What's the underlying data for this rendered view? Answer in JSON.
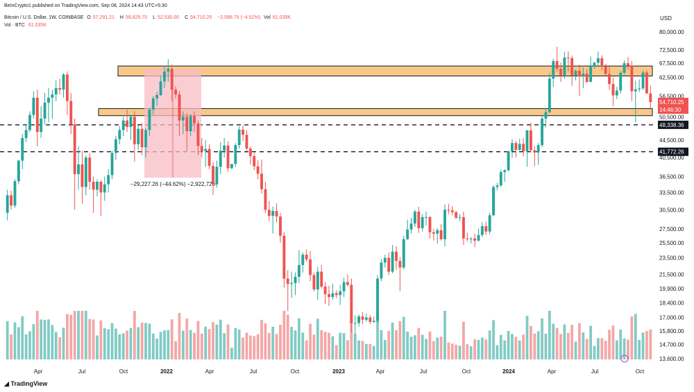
{
  "header": {
    "published": "BeInCrypto1 published on TradingView.com, Sep 08, 2024 14:43 UTC+5:30",
    "symbol": "Bitcoin / U.S. Dollar, 1W, COINBASE",
    "ohlc": {
      "o_label": "O",
      "o": "57,291.21",
      "h_label": "H",
      "h": "59,825.70",
      "l_label": "L",
      "l": "52,530.00",
      "c_label": "C",
      "c": "54,710.25",
      "change": "−2,588.75 (−4.52%)",
      "vol_label": "Vol",
      "vol": "61.035K"
    },
    "vol_line_label": "Vol · BTC",
    "vol_line_value": "61.035K"
  },
  "currency": "USD",
  "footer_logo": "TradingView",
  "colors": {
    "up": "#26a69a",
    "down": "#ef5350",
    "vol_up": "#80cbc4",
    "vol_down": "#f4a6a6",
    "zone_fill": "#f7c88a",
    "zone_border": "#131722",
    "measure_fill": "#f8bcc4",
    "price_tag": "#ef5350",
    "level_tag": "#131722"
  },
  "chart_data": {
    "type": "candlestick",
    "timeframe": "1W",
    "x_tick_labels": [
      "Apr",
      "Jul",
      "Oct",
      "2022",
      "Apr",
      "Jul",
      "Oct",
      "2023",
      "Apr",
      "Jul",
      "Oct",
      "2024",
      "Apr",
      "Jul",
      "Oct"
    ],
    "y_scale": "log",
    "y_tick_labels": [
      "80,000.00",
      "72,500.00",
      "67,500.00",
      "62,500.00",
      "56,500.00",
      "50,500.00",
      "44,500.00",
      "40,500.00",
      "36,500.00",
      "33,500.00",
      "30,500.00",
      "27,500.00",
      "25,500.00",
      "23,500.00",
      "21,500.00",
      "19,900.00",
      "18,400.00",
      "17,000.00",
      "15,800.00",
      "14,700.00",
      "13,600.00"
    ],
    "price_tags": {
      "last_price": "54,710.25",
      "countdown": "14:46:30",
      "level_1": "48,338.36",
      "level_2": "41,772.26"
    },
    "horizontal_levels": [
      48338.36,
      41772.26
    ],
    "zones": [
      {
        "low": 63000,
        "high": 66500
      },
      {
        "low": 50800,
        "high": 52800
      }
    ],
    "measure": {
      "label": "−29,227.26 (−44.62%) −2,922,726",
      "from_price": 65500,
      "to_price": 36300
    },
    "candles_note": "weekly OHLC approximations read from chart",
    "candles": [
      [
        30000,
        34000,
        28800,
        33000
      ],
      [
        33000,
        33800,
        30500,
        31200
      ],
      [
        31200,
        36000,
        30800,
        35600
      ],
      [
        35600,
        40000,
        35000,
        39800
      ],
      [
        39800,
        46000,
        38000,
        45000
      ],
      [
        45000,
        48500,
        44000,
        47000
      ],
      [
        47000,
        52000,
        46500,
        51000
      ],
      [
        51000,
        58000,
        50000,
        56000
      ],
      [
        56000,
        58500,
        43000,
        46500
      ],
      [
        46500,
        53500,
        45000,
        50000
      ],
      [
        50000,
        57500,
        48500,
        54500
      ],
      [
        54500,
        59000,
        49000,
        56000
      ],
      [
        56000,
        58500,
        50000,
        57000
      ],
      [
        57000,
        61500,
        55000,
        59000
      ],
      [
        59000,
        62000,
        57000,
        58500
      ],
      [
        58500,
        64000,
        56000,
        63500
      ],
      [
        63500,
        64500,
        51000,
        55000
      ],
      [
        55000,
        57500,
        46000,
        48500
      ],
      [
        48500,
        50000,
        30500,
        37000
      ],
      [
        37000,
        43000,
        34000,
        39000
      ],
      [
        39000,
        42000,
        31500,
        34500
      ],
      [
        34500,
        41000,
        33000,
        40500
      ],
      [
        40500,
        41500,
        34000,
        35500
      ],
      [
        35500,
        36500,
        30000,
        34000
      ],
      [
        34000,
        36000,
        32800,
        35500
      ],
      [
        35500,
        35800,
        29500,
        33500
      ],
      [
        33500,
        36500,
        32000,
        35000
      ],
      [
        35000,
        38000,
        33500,
        36800
      ],
      [
        36800,
        42000,
        36000,
        41500
      ],
      [
        41500,
        45500,
        40000,
        44700
      ],
      [
        44700,
        48000,
        43500,
        47000
      ],
      [
        47000,
        50500,
        45500,
        49500
      ],
      [
        49500,
        52500,
        46500,
        47800
      ],
      [
        47800,
        51000,
        44500,
        50500
      ],
      [
        50500,
        52000,
        39600,
        43500
      ],
      [
        43500,
        48300,
        42200,
        47300
      ],
      [
        47300,
        48800,
        41000,
        42800
      ],
      [
        42800,
        47500,
        40500,
        47000
      ],
      [
        47000,
        53000,
        45500,
        52500
      ],
      [
        52500,
        56500,
        51000,
        55800
      ],
      [
        55800,
        57800,
        53500,
        56800
      ],
      [
        56800,
        63000,
        56500,
        61200
      ],
      [
        61200,
        66500,
        59000,
        64500
      ],
      [
        64500,
        69000,
        61000,
        65500
      ],
      [
        65500,
        67000,
        55000,
        58500
      ],
      [
        58500,
        59500,
        55800,
        57000
      ],
      [
        57000,
        58000,
        45500,
        49500
      ],
      [
        49500,
        52000,
        46000,
        50500
      ],
      [
        50500,
        51500,
        42000,
        46700
      ],
      [
        46700,
        51300,
        45500,
        50700
      ],
      [
        50700,
        52000,
        46500,
        48700
      ],
      [
        48700,
        49500,
        41000,
        43100
      ],
      [
        43100,
        45000,
        40500,
        41900
      ],
      [
        41900,
        44500,
        38500,
        42400
      ],
      [
        42400,
        43500,
        38000,
        38700
      ],
      [
        38700,
        39500,
        33000,
        35000
      ],
      [
        35000,
        39800,
        34400,
        38500
      ],
      [
        38500,
        44000,
        37000,
        42000
      ],
      [
        42000,
        45000,
        40500,
        43200
      ],
      [
        43200,
        44200,
        37500,
        38200
      ],
      [
        38200,
        39000,
        38000,
        39100
      ],
      [
        39100,
        43800,
        38500,
        43300
      ],
      [
        43300,
        48000,
        42500,
        47100
      ],
      [
        47100,
        48200,
        44300,
        45800
      ],
      [
        45800,
        47000,
        42000,
        42500
      ],
      [
        42500,
        43000,
        39000,
        40800
      ],
      [
        40800,
        41500,
        37800,
        38600
      ],
      [
        38600,
        39900,
        36000,
        37100
      ],
      [
        37100,
        40000,
        33300,
        34100
      ],
      [
        34100,
        35500,
        30000,
        30500
      ],
      [
        30500,
        32000,
        28700,
        29500
      ],
      [
        29500,
        31000,
        26800,
        30300
      ],
      [
        30300,
        31600,
        28500,
        29400
      ],
      [
        29400,
        30000,
        25500,
        26500
      ],
      [
        26500,
        27000,
        20000,
        21000
      ],
      [
        21000,
        22000,
        17600,
        20400
      ],
      [
        20400,
        21800,
        18900,
        20500
      ],
      [
        20500,
        21700,
        19200,
        21200
      ],
      [
        21200,
        24500,
        20500,
        22600
      ],
      [
        22600,
        24200,
        21700,
        23900
      ],
      [
        23900,
        24600,
        23000,
        23300
      ],
      [
        23300,
        24400,
        20700,
        21400
      ],
      [
        21400,
        21700,
        19600,
        19800
      ],
      [
        19800,
        22400,
        18700,
        21800
      ],
      [
        21800,
        22600,
        19900,
        20100
      ],
      [
        20100,
        20600,
        18300,
        19300
      ],
      [
        19300,
        20200,
        18100,
        19000
      ],
      [
        19000,
        20400,
        18700,
        19400
      ],
      [
        19400,
        19700,
        18900,
        19200
      ],
      [
        19200,
        20300,
        18200,
        19600
      ],
      [
        19600,
        21100,
        19000,
        20600
      ],
      [
        20600,
        21500,
        20100,
        20300
      ],
      [
        20300,
        21000,
        15700,
        16500
      ],
      [
        16500,
        17200,
        15500,
        16500
      ],
      [
        16500,
        17300,
        16200,
        17100
      ],
      [
        17100,
        17500,
        16400,
        16800
      ],
      [
        16800,
        17400,
        16600,
        17000
      ],
      [
        17000,
        17200,
        16400,
        16600
      ],
      [
        16600,
        17100,
        16500,
        16700
      ],
      [
        16700,
        21400,
        16500,
        21000
      ],
      [
        21000,
        23300,
        20700,
        22900
      ],
      [
        22900,
        23900,
        22300,
        23500
      ],
      [
        23500,
        24200,
        21400,
        21800
      ],
      [
        21800,
        25200,
        21600,
        24300
      ],
      [
        24300,
        25000,
        22000,
        23100
      ],
      [
        23100,
        23600,
        19600,
        22300
      ],
      [
        22300,
        26500,
        22100,
        26000
      ],
      [
        26000,
        28900,
        25900,
        27400
      ],
      [
        27400,
        29200,
        26800,
        28300
      ],
      [
        28300,
        30500,
        27800,
        30200
      ],
      [
        30200,
        31000,
        26900,
        27600
      ],
      [
        27600,
        29800,
        27100,
        29300
      ],
      [
        29300,
        30200,
        28000,
        29300
      ],
      [
        29300,
        29500,
        26100,
        27000
      ],
      [
        27000,
        27500,
        25800,
        26800
      ],
      [
        26800,
        27600,
        25400,
        27300
      ],
      [
        27300,
        28200,
        25800,
        26000
      ],
      [
        26000,
        31400,
        25000,
        30500
      ],
      [
        30500,
        31500,
        29800,
        30400
      ],
      [
        30400,
        31100,
        29600,
        30100
      ],
      [
        30100,
        30300,
        29000,
        29200
      ],
      [
        29200,
        29800,
        28700,
        29300
      ],
      [
        29300,
        30200,
        25200,
        26100
      ],
      [
        26100,
        26900,
        25700,
        26000
      ],
      [
        26000,
        26300,
        25400,
        26100
      ],
      [
        26100,
        26800,
        24900,
        25800
      ],
      [
        25800,
        27500,
        25700,
        26600
      ],
      [
        26600,
        28500,
        26300,
        27900
      ],
      [
        27900,
        28600,
        26600,
        27100
      ],
      [
        27100,
        30000,
        26700,
        29600
      ],
      [
        29600,
        34800,
        29500,
        34500
      ],
      [
        34500,
        35300,
        33900,
        34800
      ],
      [
        34800,
        37900,
        34500,
        37400
      ],
      [
        37400,
        38000,
        35500,
        37800
      ],
      [
        37800,
        42000,
        37500,
        41900
      ],
      [
        41900,
        44700,
        40400,
        43800
      ],
      [
        43800,
        44300,
        40500,
        42200
      ],
      [
        42200,
        44800,
        42000,
        43600
      ],
      [
        43600,
        45000,
        40700,
        41900
      ],
      [
        41900,
        47000,
        38500,
        46900
      ],
      [
        46900,
        48900,
        42000,
        42100
      ],
      [
        42100,
        43000,
        38600,
        41600
      ],
      [
        41600,
        43800,
        38900,
        43300
      ],
      [
        43300,
        51000,
        42800,
        50000
      ],
      [
        50000,
        52900,
        47700,
        51800
      ],
      [
        51800,
        64000,
        51500,
        62100
      ],
      [
        62100,
        69200,
        59300,
        68300
      ],
      [
        68300,
        73800,
        64500,
        65500
      ],
      [
        65500,
        67700,
        61000,
        63200
      ],
      [
        63200,
        71800,
        62000,
        69600
      ],
      [
        69600,
        72000,
        64500,
        69400
      ],
      [
        69400,
        70300,
        59700,
        63200
      ],
      [
        63200,
        65300,
        61500,
        64800
      ],
      [
        64800,
        67000,
        56500,
        62800
      ],
      [
        62800,
        66000,
        59000,
        63800
      ],
      [
        63800,
        65400,
        60600,
        61000
      ],
      [
        61000,
        70000,
        61000,
        66200
      ],
      [
        66200,
        68000,
        65600,
        67700
      ],
      [
        67700,
        71900,
        66500,
        69400
      ],
      [
        69400,
        70500,
        65000,
        66400
      ],
      [
        66400,
        67300,
        63000,
        63700
      ],
      [
        63700,
        66400,
        58400,
        60300
      ],
      [
        60300,
        62500,
        53500,
        56700
      ],
      [
        56700,
        59400,
        55600,
        58200
      ],
      [
        58200,
        64700,
        57300,
        64100
      ],
      [
        64100,
        68500,
        63500,
        67500
      ],
      [
        67500,
        69900,
        65100,
        66600
      ],
      [
        66600,
        68300,
        55000,
        58000
      ],
      [
        58000,
        61400,
        49000,
        58600
      ],
      [
        58600,
        61800,
        57700,
        58900
      ],
      [
        58900,
        64900,
        58400,
        64200
      ],
      [
        64200,
        64900,
        57300,
        57300
      ],
      [
        57300,
        59800,
        52500,
        54700
      ]
    ]
  }
}
